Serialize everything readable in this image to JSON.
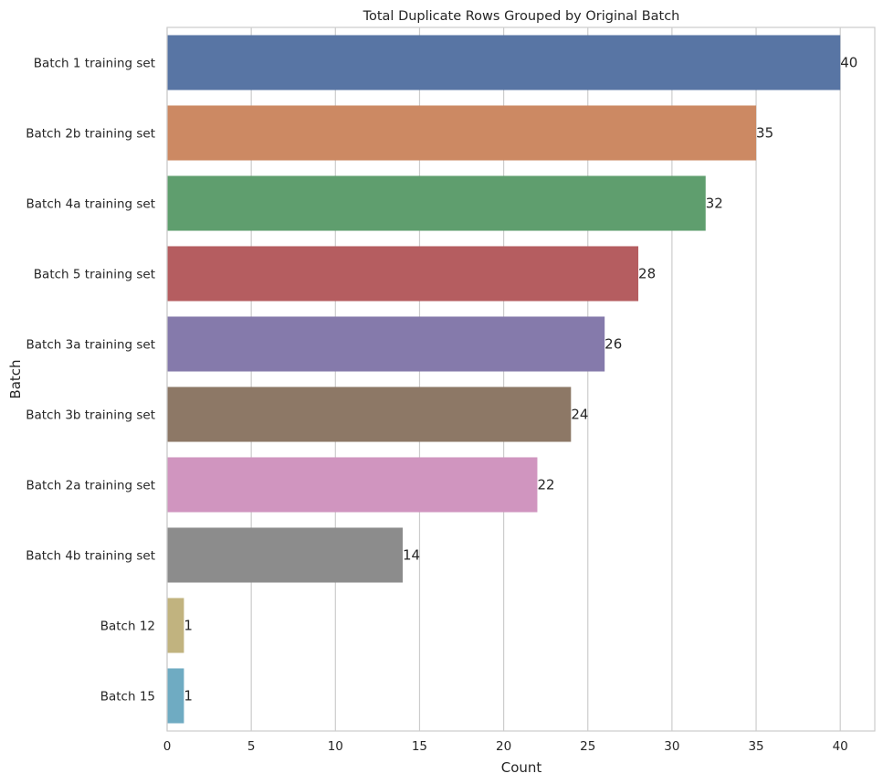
{
  "chart_data": {
    "type": "bar",
    "orientation": "horizontal",
    "title": "Total Duplicate Rows Grouped by Original Batch",
    "xlabel": "Count",
    "ylabel": "Batch",
    "xlim": [
      0,
      42
    ],
    "xticks": [
      0,
      5,
      10,
      15,
      20,
      25,
      30,
      35,
      40
    ],
    "grid": true,
    "categories": [
      "Batch 1 training set",
      "Batch 2b training set",
      "Batch 4a training set",
      "Batch 5 training set",
      "Batch 3a training set",
      "Batch 3b training set",
      "Batch 2a training set",
      "Batch 4b training set",
      "Batch 12",
      "Batch 15"
    ],
    "values": [
      40,
      35,
      32,
      28,
      26,
      24,
      22,
      14,
      1,
      1
    ],
    "colors": [
      "#5875a4",
      "#cc8963",
      "#5f9e6e",
      "#b55d60",
      "#857aab",
      "#8d7866",
      "#d095bf",
      "#8c8c8c",
      "#c1b37f",
      "#6fabc2"
    ]
  }
}
